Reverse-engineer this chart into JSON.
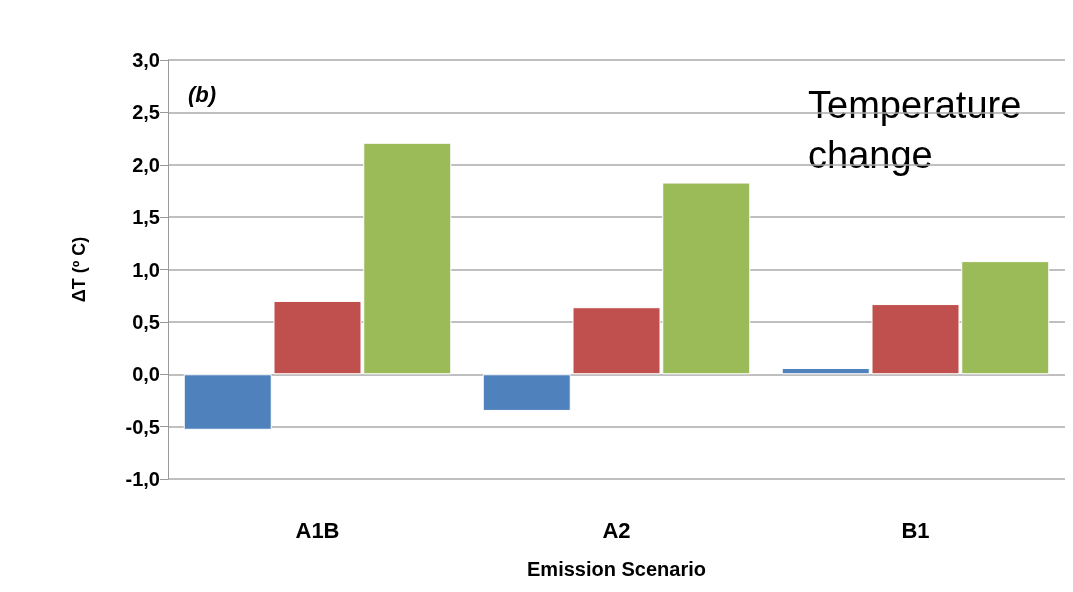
{
  "chart_data": {
    "type": "bar",
    "xlabel": "Emission Scenario",
    "ylabel": "ΔT (º C)",
    "annotations": [
      "(b)",
      "Temperature change"
    ],
    "categories": [
      "A1B",
      "A2",
      "B1"
    ],
    "series": [
      {
        "color": "#4f81bd",
        "values": [
          -0.53,
          -0.35,
          0.06
        ]
      },
      {
        "color": "#c0504d",
        "values": [
          0.7,
          0.64,
          0.67
        ]
      },
      {
        "color": "#9bbb59",
        "values": [
          2.21,
          1.83,
          1.08
        ]
      }
    ],
    "ylim": [
      -1,
      3
    ],
    "yticks": [
      {
        "value": -1,
        "label": "-1,0"
      },
      {
        "value": -0.5,
        "label": "-0,5"
      },
      {
        "value": 0,
        "label": "0,0"
      },
      {
        "value": 0.5,
        "label": "0,5"
      },
      {
        "value": 1,
        "label": "1,0"
      },
      {
        "value": 1.5,
        "label": "1,5"
      },
      {
        "value": 2,
        "label": "2,0"
      },
      {
        "value": 2.5,
        "label": "2,5"
      },
      {
        "value": 3,
        "label": "3,0"
      }
    ],
    "grid": "y"
  }
}
